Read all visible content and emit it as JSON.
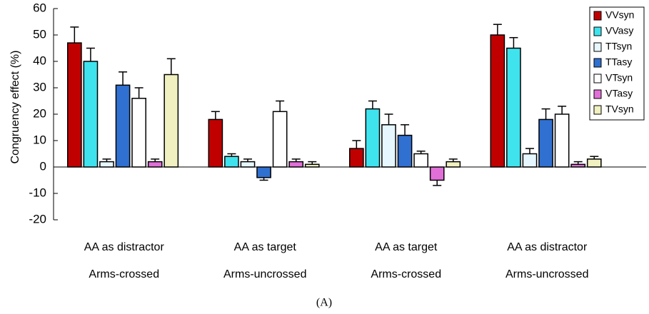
{
  "chart_data": {
    "type": "bar",
    "ylabel": "Congruency effect (%)",
    "caption": "(A)",
    "categories": [
      [
        "AA as distractor",
        "Arms-crossed"
      ],
      [
        "AA as target",
        "Arms-uncrossed"
      ],
      [
        "AA as target",
        "Arms-crossed"
      ],
      [
        "AA as distractor",
        "Arms-uncrossed"
      ]
    ],
    "series": [
      {
        "name": "VVsyn",
        "color": "#c00000",
        "values": [
          47,
          18,
          7,
          50
        ],
        "errors": [
          6,
          3,
          3,
          4
        ]
      },
      {
        "name": "VVasy",
        "color": "#3fe3ee",
        "values": [
          40,
          4,
          22,
          45
        ],
        "errors": [
          5,
          1,
          3,
          4
        ]
      },
      {
        "name": "TTsyn",
        "color": "#e6f7ff",
        "values": [
          2,
          2,
          16,
          5
        ],
        "errors": [
          1,
          1,
          4,
          2
        ]
      },
      {
        "name": "TTasy",
        "color": "#3070d0",
        "values": [
          31,
          -4,
          12,
          18
        ],
        "errors": [
          5,
          1,
          4,
          4
        ]
      },
      {
        "name": "VTsyn",
        "color": "#ffffff",
        "values": [
          26,
          21,
          5,
          20
        ],
        "errors": [
          4,
          4,
          1,
          3
        ]
      },
      {
        "name": "VTasy",
        "color": "#e070d8",
        "values": [
          2,
          2,
          -5,
          1
        ],
        "errors": [
          1,
          1,
          2,
          1
        ]
      },
      {
        "name": "TVsyn",
        "color": "#f0f0c0",
        "values": [
          35,
          1,
          2,
          3
        ],
        "errors": [
          6,
          1,
          1,
          1
        ]
      }
    ],
    "ylim": [
      -20,
      60
    ],
    "yticks": [
      -20,
      -10,
      0,
      10,
      20,
      30,
      40,
      50,
      60
    ],
    "legend": "upper right"
  }
}
